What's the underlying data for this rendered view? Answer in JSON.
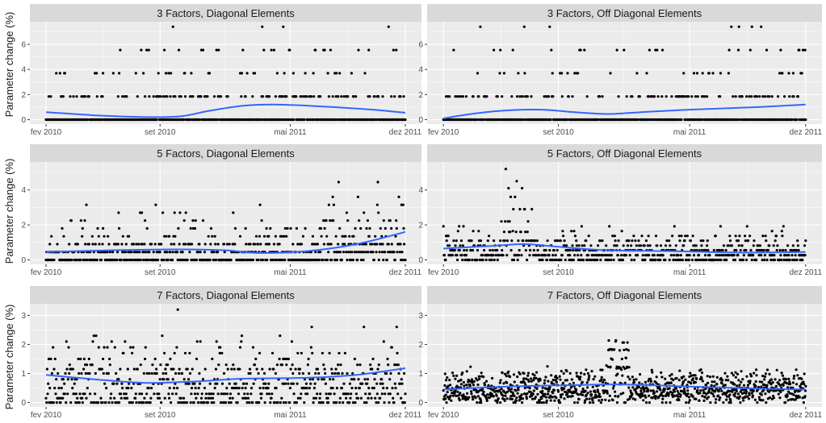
{
  "figure": {
    "ylabel": "Parameter change (%)",
    "colors": {
      "panel_bg": "#EBEBEB",
      "strip_bg": "#D9D9D9",
      "grid": "#FFFFFF",
      "points": "#000000",
      "smooth": "#3366FF",
      "tick_text": "#4D4D4D",
      "title_text": "#1A1A1A"
    }
  },
  "chart_data": [
    {
      "type": "scatter",
      "title": "3 Factors, Diagonal Elements",
      "x_ticks": [
        "fev 2010",
        "set 2010",
        "mai 2011",
        "dez 2011"
      ],
      "xlim": [
        "2010-02-01",
        "2011-12-01"
      ],
      "y_ticks": [
        0,
        2,
        4,
        6
      ],
      "ylim": [
        -0.35,
        7.8
      ],
      "zero_fraction": 0.73,
      "smallest_step": 0.0,
      "seed": 11,
      "bands": [
        {
          "x": [
            "2010-02-01",
            "2011-12-01"
          ],
          "dist": [
            [
              1.85,
              0.15
            ],
            [
              3.7,
              0.05
            ],
            [
              5.55,
              0.03
            ],
            [
              7.4,
              0.01
            ]
          ]
        }
      ],
      "smooth": [
        [
          "2010-02-01",
          0.6
        ],
        [
          "2010-05-01",
          0.35
        ],
        [
          "2010-07-01",
          0.25
        ],
        [
          "2010-09-01",
          0.2
        ],
        [
          "2010-10-15",
          0.3
        ],
        [
          "2010-12-01",
          0.7
        ],
        [
          "2011-02-01",
          1.1
        ],
        [
          "2011-04-01",
          1.2
        ],
        [
          "2011-07-01",
          1.05
        ],
        [
          "2011-10-01",
          0.8
        ],
        [
          "2011-12-01",
          0.55
        ]
      ]
    },
    {
      "type": "scatter",
      "title": "3 Factors, Off Diagonal Elements",
      "x_ticks": [
        "fev 2010",
        "set 2010",
        "mai 2011",
        "dez 2011"
      ],
      "xlim": [
        "2010-02-01",
        "2011-12-01"
      ],
      "y_ticks": [
        0,
        2,
        4,
        6
      ],
      "ylim": [
        -0.35,
        7.8
      ],
      "zero_fraction": 0.75,
      "smallest_step": 0.0,
      "seed": 23,
      "bands": [
        {
          "x": [
            "2010-02-01",
            "2011-12-01"
          ],
          "dist": [
            [
              1.85,
              0.16
            ],
            [
              3.7,
              0.05
            ],
            [
              5.55,
              0.03
            ],
            [
              7.4,
              0.01
            ]
          ]
        }
      ],
      "smooth": [
        [
          "2010-02-01",
          0.1
        ],
        [
          "2010-04-01",
          0.5
        ],
        [
          "2010-06-01",
          0.75
        ],
        [
          "2010-08-01",
          0.8
        ],
        [
          "2010-10-01",
          0.6
        ],
        [
          "2010-12-01",
          0.45
        ],
        [
          "2011-02-01",
          0.6
        ],
        [
          "2011-05-01",
          0.8
        ],
        [
          "2011-09-01",
          1.0
        ],
        [
          "2011-12-01",
          1.2
        ]
      ]
    },
    {
      "type": "scatter",
      "title": "5 Factors, Diagonal Elements",
      "x_ticks": [
        "fev 2010",
        "set 2010",
        "mai 2011",
        "dez 2011"
      ],
      "xlim": [
        "2010-02-01",
        "2011-12-01"
      ],
      "y_ticks": [
        0,
        2,
        4
      ],
      "ylim": [
        -0.25,
        5.6
      ],
      "zero_fraction": 0.45,
      "smallest_step": 0.45,
      "seed": 37,
      "bands": [
        {
          "x": [
            "2010-02-01",
            "2011-07-01"
          ],
          "dist": [
            [
              0.45,
              0.45
            ],
            [
              0.9,
              0.3
            ],
            [
              1.35,
              0.12
            ],
            [
              1.8,
              0.07
            ],
            [
              2.25,
              0.04
            ],
            [
              2.7,
              0.015
            ],
            [
              3.15,
              0.01
            ],
            [
              3.6,
              0.005
            ]
          ]
        },
        {
          "x": [
            "2011-07-01",
            "2011-12-01"
          ],
          "dist": [
            [
              0.45,
              0.25
            ],
            [
              0.9,
              0.2
            ],
            [
              1.35,
              0.15
            ],
            [
              1.8,
              0.12
            ],
            [
              2.25,
              0.1
            ],
            [
              2.7,
              0.08
            ],
            [
              3.15,
              0.05
            ],
            [
              3.6,
              0.03
            ],
            [
              4.0,
              0.015
            ],
            [
              4.45,
              0.01
            ],
            [
              4.9,
              0.005
            ]
          ]
        }
      ],
      "smooth": [
        [
          "2010-02-01",
          0.45
        ],
        [
          "2010-06-01",
          0.55
        ],
        [
          "2010-10-01",
          0.6
        ],
        [
          "2011-01-01",
          0.55
        ],
        [
          "2011-03-01",
          0.4
        ],
        [
          "2011-06-01",
          0.5
        ],
        [
          "2011-09-01",
          0.9
        ],
        [
          "2011-12-01",
          1.6
        ]
      ]
    },
    {
      "type": "scatter",
      "title": "5 Factors, Off Diagonal Elements",
      "x_ticks": [
        "fev 2010",
        "set 2010",
        "mai 2011",
        "dez 2011"
      ],
      "xlim": [
        "2010-02-01",
        "2011-12-01"
      ],
      "y_ticks": [
        0,
        2,
        4
      ],
      "ylim": [
        -0.25,
        5.6
      ],
      "zero_fraction": 0.25,
      "smallest_step": 0.27,
      "seed": 41,
      "bands": [
        {
          "x": [
            "2010-02-01",
            "2011-12-01"
          ],
          "dist": [
            [
              0.27,
              0.25
            ],
            [
              0.55,
              0.22
            ],
            [
              0.82,
              0.15
            ],
            [
              1.1,
              0.1
            ],
            [
              1.37,
              0.05
            ],
            [
              1.65,
              0.02
            ],
            [
              1.92,
              0.01
            ]
          ]
        },
        {
          "x": [
            "2010-05-15",
            "2010-07-15"
          ],
          "dist": [
            [
              1.1,
              0.2
            ],
            [
              1.6,
              0.2
            ],
            [
              2.2,
              0.15
            ],
            [
              2.9,
              0.1
            ],
            [
              3.6,
              0.1
            ],
            [
              4.1,
              0.1
            ],
            [
              4.5,
              0.05
            ],
            [
              5.2,
              0.03
            ]
          ]
        }
      ],
      "smooth": [
        [
          "2010-02-01",
          0.65
        ],
        [
          "2010-05-01",
          0.8
        ],
        [
          "2010-07-01",
          0.9
        ],
        [
          "2010-09-01",
          0.75
        ],
        [
          "2010-12-01",
          0.55
        ],
        [
          "2011-04-01",
          0.5
        ],
        [
          "2011-08-01",
          0.42
        ],
        [
          "2011-12-01",
          0.45
        ]
      ]
    },
    {
      "type": "scatter",
      "title": "7 Factors, Diagonal Elements",
      "x_ticks": [
        "fev 2010",
        "set 2010",
        "mai 2011",
        "dez 2011"
      ],
      "xlim": [
        "2010-02-01",
        "2011-12-01"
      ],
      "y_ticks": [
        0,
        1,
        2,
        3
      ],
      "ylim": [
        -0.15,
        3.4
      ],
      "zero_fraction": 0.18,
      "smallest_step": 0.15,
      "seed": 53,
      "bands": [
        {
          "x": [
            "2010-02-01",
            "2011-12-01"
          ],
          "dist": [
            [
              0.15,
              0.12
            ],
            [
              0.3,
              0.12
            ],
            [
              0.5,
              0.12
            ],
            [
              0.65,
              0.1
            ],
            [
              0.8,
              0.1
            ],
            [
              1.0,
              0.1
            ],
            [
              1.15,
              0.08
            ],
            [
              1.3,
              0.06
            ],
            [
              1.5,
              0.05
            ],
            [
              1.7,
              0.04
            ],
            [
              1.9,
              0.03
            ],
            [
              2.1,
              0.02
            ],
            [
              2.3,
              0.015
            ],
            [
              2.6,
              0.01
            ],
            [
              3.2,
              0.005
            ]
          ]
        }
      ],
      "smooth": [
        [
          "2010-02-01",
          0.95
        ],
        [
          "2010-05-01",
          0.8
        ],
        [
          "2010-08-01",
          0.68
        ],
        [
          "2010-11-01",
          0.72
        ],
        [
          "2011-02-01",
          0.82
        ],
        [
          "2011-06-01",
          0.85
        ],
        [
          "2011-09-01",
          0.95
        ],
        [
          "2011-12-01",
          1.18
        ]
      ]
    },
    {
      "type": "scatter",
      "title": "7 Factors, Off Diagonal Elements",
      "x_ticks": [
        "fev 2010",
        "set 2010",
        "mai 2011",
        "dez 2011"
      ],
      "xlim": [
        "2010-02-01",
        "2011-12-01"
      ],
      "y_ticks": [
        0,
        1,
        2,
        3
      ],
      "ylim": [
        -0.15,
        3.4
      ],
      "zero_fraction": 0.03,
      "smallest_step": 0.1,
      "seed": 67,
      "points_per_day": 1.6,
      "bands": [
        {
          "x": [
            "2010-02-01",
            "2011-12-01"
          ],
          "dist": [
            [
              0.1,
              0.08
            ],
            [
              0.2,
              0.12
            ],
            [
              0.3,
              0.14
            ],
            [
              0.4,
              0.14
            ],
            [
              0.5,
              0.12
            ],
            [
              0.6,
              0.1
            ],
            [
              0.7,
              0.09
            ],
            [
              0.8,
              0.07
            ],
            [
              0.9,
              0.05
            ],
            [
              1.0,
              0.04
            ],
            [
              1.1,
              0.02
            ],
            [
              1.25,
              0.01
            ]
          ]
        },
        {
          "x": [
            "2010-12-01",
            "2011-01-10"
          ],
          "dist": [
            [
              1.2,
              0.3
            ],
            [
              1.5,
              0.3
            ],
            [
              1.8,
              0.2
            ],
            [
              2.1,
              0.2
            ]
          ]
        }
      ],
      "smooth": [
        [
          "2010-02-01",
          0.45
        ],
        [
          "2010-06-01",
          0.55
        ],
        [
          "2010-10-01",
          0.6
        ],
        [
          "2011-01-01",
          0.62
        ],
        [
          "2011-05-01",
          0.55
        ],
        [
          "2011-09-01",
          0.48
        ],
        [
          "2011-12-01",
          0.45
        ]
      ]
    }
  ]
}
